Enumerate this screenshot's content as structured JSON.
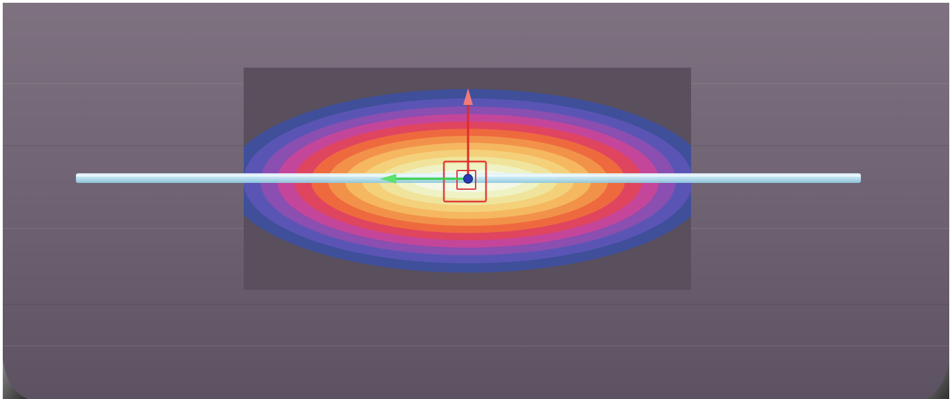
{
  "viewport": {
    "background_colors": {
      "top": "#7e7180",
      "middle": "#6f6373",
      "bottom": "#5d5262",
      "frame": "#ffffff",
      "vignette": "#3a3a3a"
    }
  },
  "heatmap_panel": {
    "panel_color": "#5a4f5c",
    "contour_colors": [
      "#3f4f9a",
      "#5a55b5",
      "#8a4fb0",
      "#c4469a",
      "#e0455f",
      "#ee6a3e",
      "#f2924a",
      "#f5b860",
      "#f4d07a",
      "#f0e49c",
      "#eef2c4",
      "#f4f8e6"
    ]
  },
  "rod": {
    "color": "#bfe6f5"
  },
  "gizmo": {
    "y_axis_color": "#e02a2a",
    "x_axis_color": "#3ad04a",
    "pivot_color": "#2a3ab0",
    "selection_box_color": "#e03c3c"
  }
}
